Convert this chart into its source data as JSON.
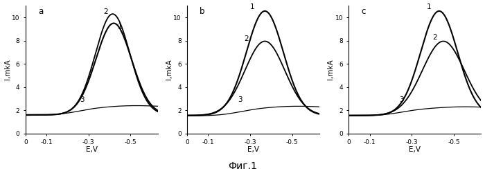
{
  "figsize": [
    7.0,
    2.44
  ],
  "dpi": 100,
  "background": "#ffffff",
  "fig1_label": "Фиг.1",
  "panels": [
    "a",
    "b",
    "c"
  ],
  "xlim_left": 0.0,
  "xlim_right": -0.63,
  "ylim": [
    0,
    11
  ],
  "yticks": [
    0,
    2,
    4,
    6,
    8,
    10
  ],
  "xticks": [
    0,
    -0.1,
    -0.3,
    -0.5
  ],
  "xtick_labels": [
    "0",
    "-0.1",
    "-0.3",
    "-0.5"
  ],
  "ytick_labels": [
    "0",
    "2",
    "4",
    "6",
    "8",
    "10"
  ]
}
